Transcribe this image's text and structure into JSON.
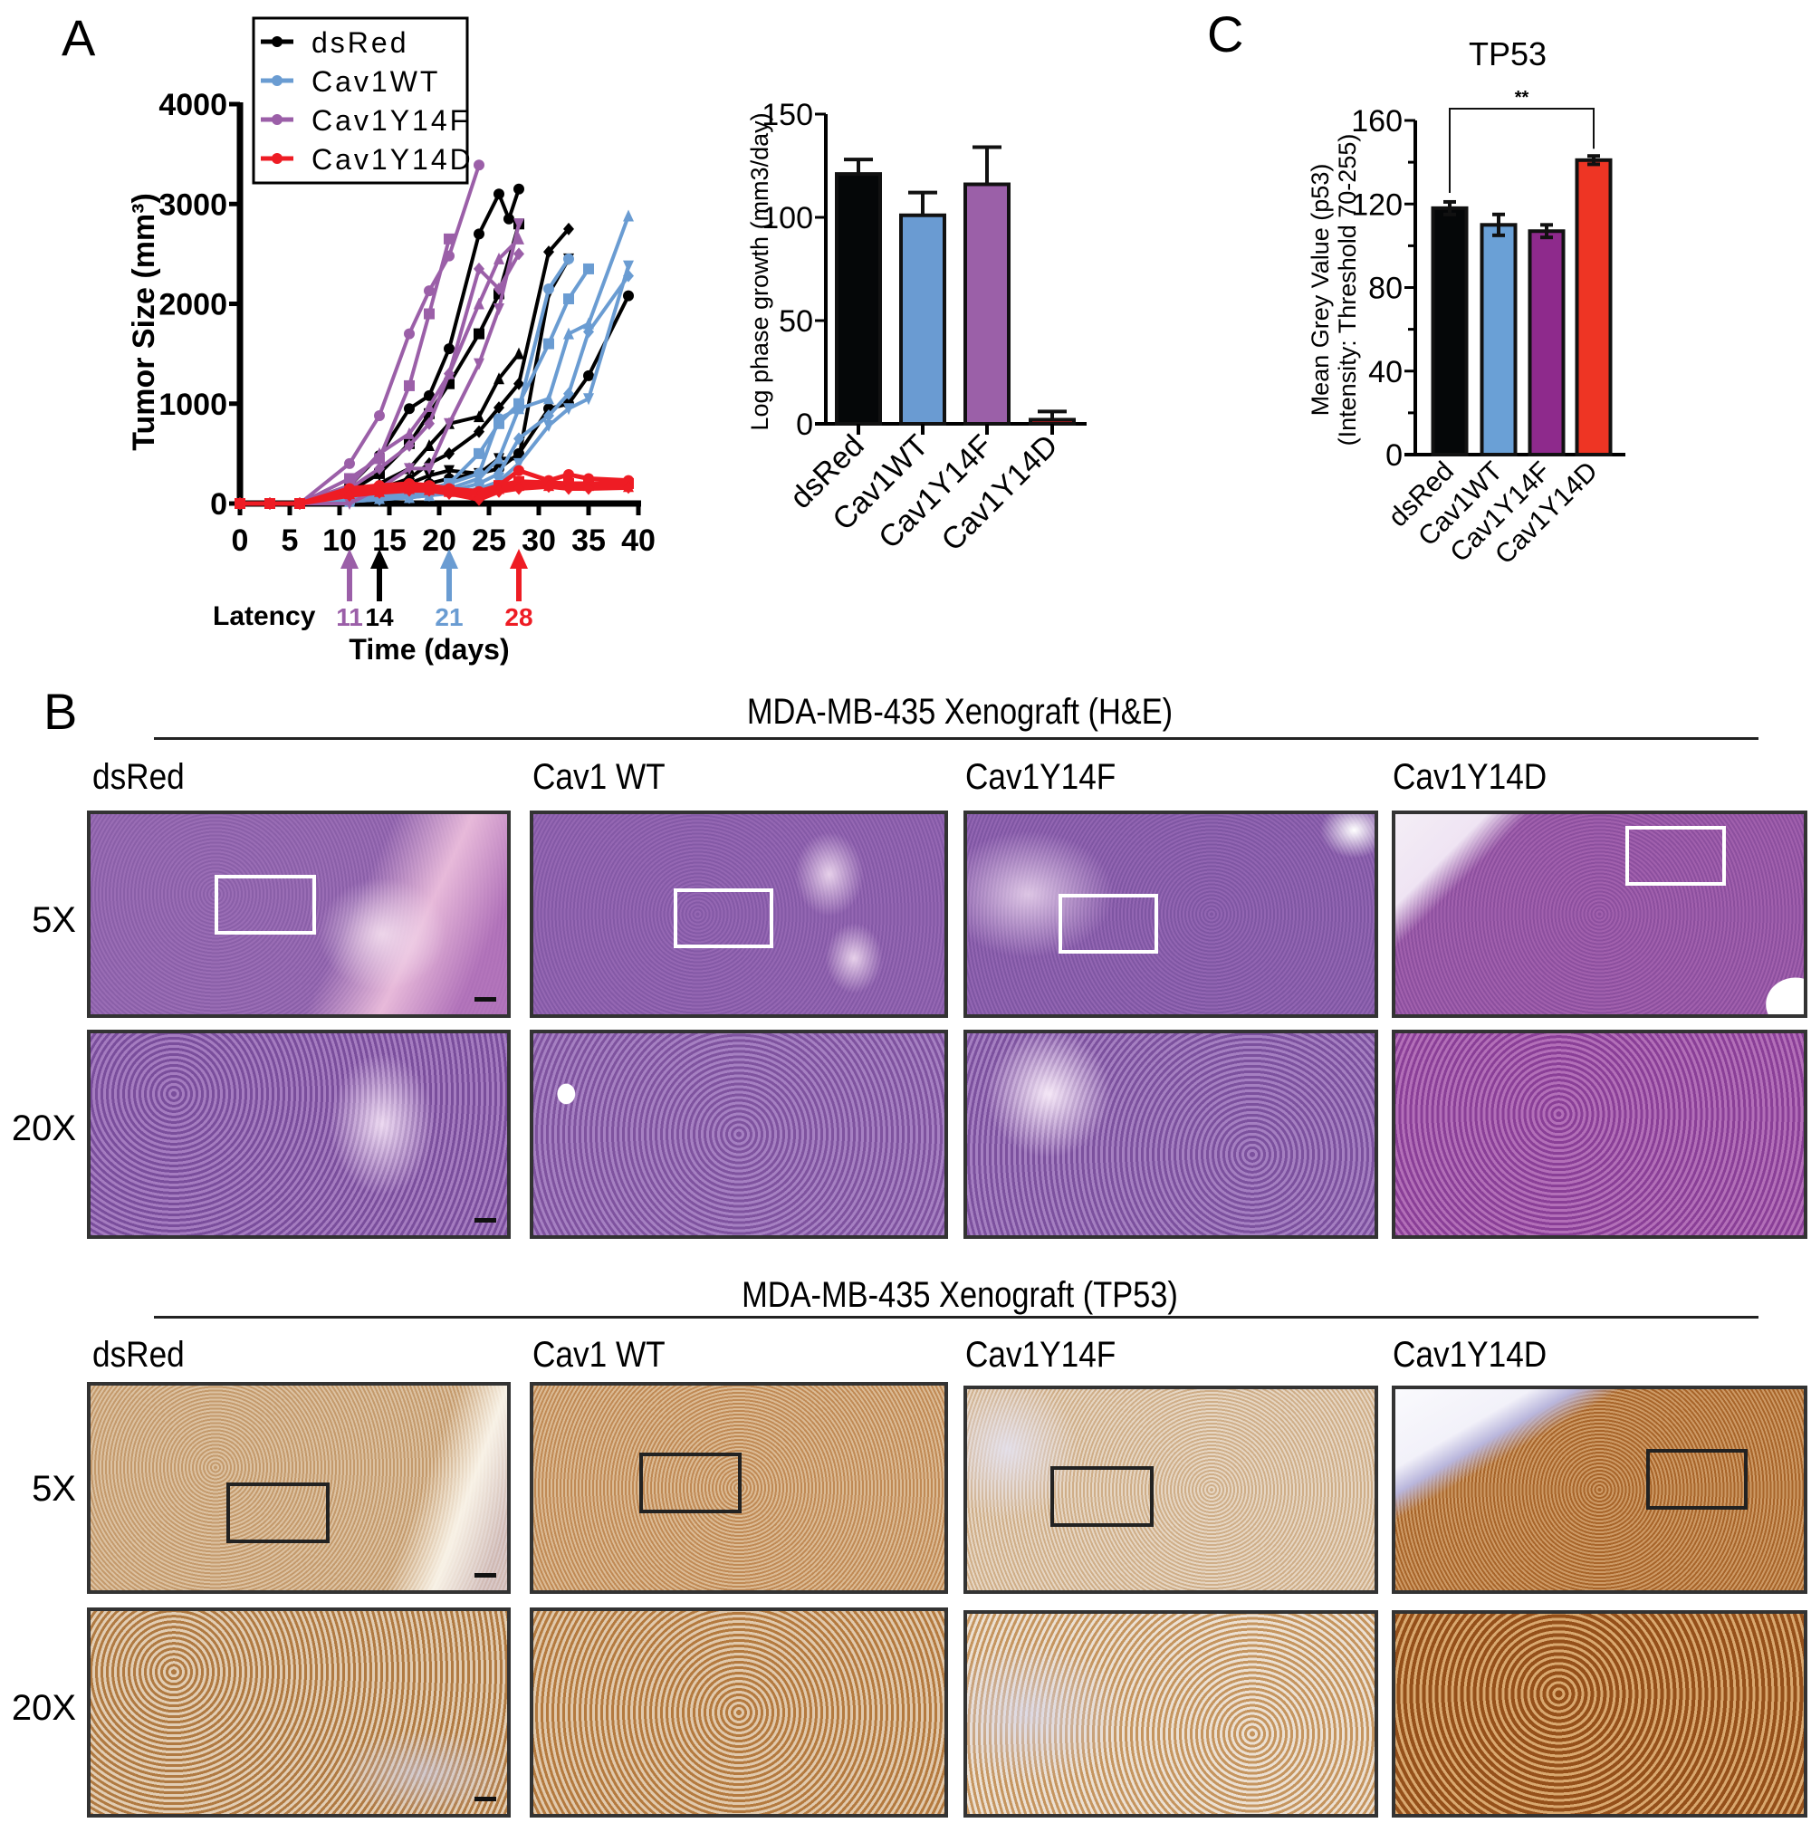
{
  "panels": {
    "A": {
      "letter": "A"
    },
    "B": {
      "letter": "B"
    },
    "C": {
      "letter": "C"
    }
  },
  "colors": {
    "dsRed": "#000000",
    "Cav1WT": "#6a9cd2",
    "Cav1Y14F": "#9b5fa8",
    "Cav1Y14D": "#ee1c24",
    "Cav1Y14F_barC": "#8e2a8c",
    "Cav1Y14D_barC": "#ee3524"
  },
  "chart_data": [
    {
      "id": "tumor-growth",
      "type": "line",
      "title": "",
      "xlabel": "Time (days)",
      "ylabel": "Tumor Size (mm³)",
      "xlim": [
        0,
        40
      ],
      "ylim": [
        0,
        4000
      ],
      "xticks": [
        "0",
        "5",
        "10",
        "15",
        "20",
        "25",
        "30",
        "35",
        "40"
      ],
      "yticks": [
        "0",
        "1000",
        "2000",
        "3000",
        "4000"
      ],
      "legend": [
        "dsRed",
        "Cav1WT",
        "Cav1Y14F",
        "Cav1Y14D"
      ],
      "legend_position": "top-left",
      "latency": {
        "label": "Latency",
        "markers": [
          {
            "group": "Cav1Y14F",
            "day": 11,
            "text": "11"
          },
          {
            "group": "dsRed",
            "day": 14,
            "text": "14"
          },
          {
            "group": "Cav1WT",
            "day": 21,
            "text": "21"
          },
          {
            "group": "Cav1Y14D",
            "day": 28,
            "text": "28"
          }
        ]
      },
      "series": [
        {
          "name": "dsRed",
          "x": [
            0,
            3,
            6,
            11,
            14,
            17,
            19,
            21,
            24,
            26,
            27,
            28
          ],
          "y": [
            0,
            0,
            0,
            180,
            480,
            950,
            1080,
            1550,
            2700,
            3100,
            2850,
            3150
          ]
        },
        {
          "name": "dsRed",
          "x": [
            0,
            3,
            6,
            11,
            14,
            17,
            19,
            21,
            24,
            26,
            28
          ],
          "y": [
            0,
            0,
            0,
            120,
            300,
            600,
            900,
            1200,
            1700,
            2100,
            2800
          ]
        },
        {
          "name": "dsRed",
          "x": [
            0,
            3,
            6,
            11,
            14,
            17,
            19,
            21,
            24,
            26,
            28
          ],
          "y": [
            0,
            0,
            0,
            80,
            200,
            350,
            580,
            800,
            870,
            1250,
            1500
          ]
        },
        {
          "name": "dsRed",
          "x": [
            0,
            3,
            6,
            11,
            14,
            17,
            19,
            21,
            24,
            26,
            28,
            31,
            33
          ],
          "y": [
            0,
            0,
            0,
            60,
            150,
            250,
            400,
            500,
            720,
            960,
            1200,
            2520,
            2750
          ]
        },
        {
          "name": "dsRed",
          "x": [
            0,
            3,
            6,
            11,
            14,
            17,
            19,
            21,
            24,
            26,
            28,
            31,
            33
          ],
          "y": [
            0,
            0,
            0,
            40,
            120,
            200,
            280,
            330,
            300,
            450,
            450,
            2100,
            2450
          ]
        },
        {
          "name": "dsRed",
          "x": [
            0,
            3,
            6,
            11,
            14,
            17,
            19,
            21,
            24,
            26,
            28,
            31,
            33,
            35,
            39
          ],
          "y": [
            0,
            0,
            0,
            30,
            80,
            150,
            200,
            250,
            300,
            350,
            500,
            950,
            1000,
            1280,
            2080
          ]
        },
        {
          "name": "Cav1WT",
          "x": [
            0,
            3,
            6,
            11,
            14,
            17,
            19,
            21,
            24,
            26,
            28,
            31,
            33
          ],
          "y": [
            0,
            0,
            0,
            30,
            60,
            80,
            100,
            200,
            300,
            850,
            950,
            2150,
            2450
          ]
        },
        {
          "name": "Cav1WT",
          "x": [
            0,
            3,
            6,
            11,
            14,
            17,
            19,
            21,
            24,
            26,
            28,
            31,
            33,
            35
          ],
          "y": [
            0,
            0,
            0,
            40,
            80,
            100,
            150,
            200,
            500,
            800,
            1000,
            1600,
            2050,
            2350
          ]
        },
        {
          "name": "Cav1WT",
          "x": [
            0,
            3,
            6,
            11,
            14,
            17,
            19,
            21,
            24,
            26,
            28,
            31,
            33,
            35,
            39
          ],
          "y": [
            0,
            0,
            0,
            20,
            50,
            60,
            80,
            150,
            250,
            450,
            950,
            1050,
            1700,
            1800,
            2880
          ]
        },
        {
          "name": "Cav1WT",
          "x": [
            0,
            3,
            6,
            11,
            14,
            17,
            19,
            21,
            24,
            26,
            28,
            31,
            33,
            35,
            39
          ],
          "y": [
            0,
            0,
            0,
            20,
            40,
            60,
            90,
            120,
            200,
            300,
            650,
            880,
            1100,
            1720,
            2280
          ]
        },
        {
          "name": "Cav1WT",
          "x": [
            0,
            3,
            6,
            11,
            14,
            17,
            19,
            21,
            24,
            26,
            28,
            31,
            33,
            35,
            39
          ],
          "y": [
            0,
            0,
            0,
            20,
            40,
            60,
            80,
            100,
            150,
            220,
            400,
            780,
            950,
            1050,
            2380
          ]
        },
        {
          "name": "Cav1Y14F",
          "x": [
            0,
            3,
            6,
            11,
            14,
            17,
            19,
            21,
            24
          ],
          "y": [
            0,
            0,
            0,
            400,
            880,
            1700,
            2130,
            2480,
            3390
          ]
        },
        {
          "name": "Cav1Y14F",
          "x": [
            0,
            3,
            6,
            11,
            14,
            17,
            19,
            21
          ],
          "y": [
            0,
            0,
            0,
            250,
            450,
            1180,
            1900,
            2650
          ]
        },
        {
          "name": "Cav1Y14F",
          "x": [
            0,
            3,
            6,
            11,
            14,
            17,
            19,
            21,
            24,
            26,
            28
          ],
          "y": [
            0,
            0,
            0,
            180,
            500,
            700,
            970,
            1300,
            2000,
            2450,
            2650
          ]
        },
        {
          "name": "Cav1Y14F",
          "x": [
            0,
            3,
            6,
            11,
            14,
            17,
            19,
            21,
            24,
            26,
            28
          ],
          "y": [
            0,
            0,
            0,
            150,
            350,
            580,
            800,
            1300,
            2350,
            2150,
            2500
          ]
        },
        {
          "name": "Cav1Y14F",
          "x": [
            0,
            3,
            6,
            11,
            14,
            17,
            19,
            21,
            24,
            26,
            28
          ],
          "y": [
            0,
            0,
            0,
            0,
            150,
            350,
            350,
            800,
            1400,
            1950,
            2800
          ]
        },
        {
          "name": "Cav1Y14D",
          "x": [
            0,
            3,
            6,
            11,
            14,
            17,
            19,
            21,
            24,
            26,
            28,
            31,
            33,
            35,
            39
          ],
          "y": [
            0,
            0,
            0,
            150,
            180,
            200,
            180,
            150,
            120,
            180,
            330,
            230,
            290,
            250,
            230
          ]
        },
        {
          "name": "Cav1Y14D",
          "x": [
            0,
            3,
            6,
            11,
            14,
            17,
            19,
            21,
            24,
            26,
            28,
            31,
            33,
            35,
            39
          ],
          "y": [
            0,
            0,
            0,
            120,
            150,
            170,
            160,
            130,
            100,
            180,
            220,
            210,
            200,
            200,
            200
          ]
        },
        {
          "name": "Cav1Y14D",
          "x": [
            0,
            3,
            6,
            11,
            14,
            17,
            19,
            21,
            24,
            26,
            28,
            31,
            33,
            35,
            39
          ],
          "y": [
            0,
            0,
            0,
            100,
            120,
            150,
            140,
            120,
            90,
            150,
            180,
            180,
            190,
            180,
            170
          ]
        },
        {
          "name": "Cav1Y14D",
          "x": [
            0,
            3,
            6,
            11,
            14,
            17,
            19,
            21,
            24,
            26,
            28,
            31,
            33,
            35,
            39
          ],
          "y": [
            0,
            0,
            0,
            80,
            110,
            130,
            130,
            100,
            40,
            120,
            150,
            170,
            150,
            150,
            160
          ]
        }
      ]
    },
    {
      "id": "log-phase-growth",
      "type": "bar",
      "title": "",
      "xlabel": "",
      "ylabel": "Log phase growth (mm3/day)",
      "ylim": [
        0,
        150
      ],
      "yticks": [
        "0",
        "50",
        "100",
        "150"
      ],
      "categories": [
        "dsRed",
        "Cav1WT",
        "Cav1Y14F",
        "Cav1Y14D"
      ],
      "values": [
        121,
        101,
        116,
        2
      ],
      "errors": [
        7,
        11,
        18,
        4
      ],
      "colors": [
        "#050708",
        "#6a9bd2",
        "#9b60a8",
        "#ee1c24"
      ]
    },
    {
      "id": "tp53-grey-value",
      "type": "bar",
      "title": "TP53",
      "xlabel": "",
      "ylabel": "Mean Grey Value (p53)",
      "ylabel2": "(Intensity: Threshold 70-255)",
      "ylim": [
        0,
        160
      ],
      "yticks": [
        "0",
        "40",
        "80",
        "120",
        "160"
      ],
      "categories": [
        "dsRed",
        "Cav1WT",
        "Cav1Y14F",
        "Cav1Y14D"
      ],
      "values": [
        118,
        110,
        107,
        141
      ],
      "errors": [
        3,
        5,
        3,
        2
      ],
      "colors": [
        "#050708",
        "#6aa0d6",
        "#8e2a8c",
        "#ee3524"
      ],
      "significance": {
        "from": 0,
        "to": 3,
        "label": "**"
      }
    }
  ],
  "histology": {
    "he": {
      "title": "MDA-MB-435 Xenograft (H&E)",
      "columns": [
        "dsRed",
        "Cav1 WT",
        "Cav1Y14F",
        "Cav1Y14D"
      ],
      "rows": [
        "5X",
        "20X"
      ]
    },
    "tp53": {
      "title": "MDA-MB-435 Xenograft (TP53)",
      "columns": [
        "dsRed",
        "Cav1 WT",
        "Cav1Y14F",
        "Cav1Y14D"
      ],
      "rows": [
        "5X",
        "20X"
      ]
    }
  }
}
